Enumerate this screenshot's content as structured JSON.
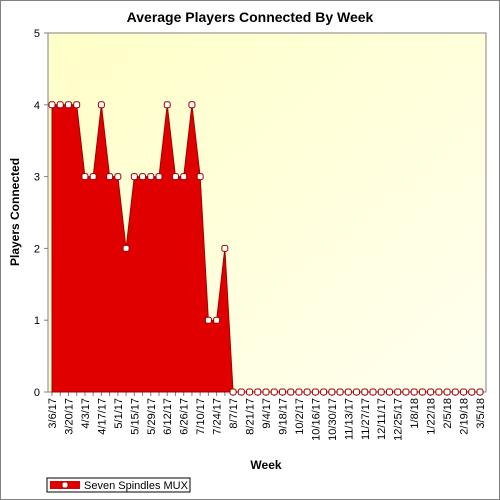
{
  "chart_data": {
    "type": "area",
    "title": "Average Players Connected By Week",
    "x_label": "Week",
    "y_label": "Players Connected",
    "categories": [
      "3/6/17",
      null,
      "3/20/17",
      null,
      "4/3/17",
      null,
      "4/17/17",
      null,
      "5/1/17",
      null,
      "5/15/17",
      null,
      "5/29/17",
      null,
      "6/12/17",
      null,
      "6/26/17",
      null,
      "7/10/17",
      null,
      "7/24/17",
      null,
      "8/7/17",
      null,
      "8/21/17",
      null,
      "9/4/17",
      null,
      "9/18/17",
      null,
      "10/2/17",
      null,
      "10/16/17",
      null,
      "10/30/17",
      null,
      "11/13/17",
      null,
      "11/27/17",
      null,
      "12/11/17",
      null,
      "12/25/17",
      null,
      "1/8/18",
      null,
      "1/22/18",
      null,
      "2/5/18",
      null,
      "2/19/18",
      null,
      "3/5/18"
    ],
    "series": [
      {
        "name": "Seven Spindles MUX",
        "color": "#e00000",
        "values": [
          4,
          4,
          4,
          4,
          3,
          3,
          4,
          3,
          3,
          2,
          3,
          3,
          3,
          3,
          4,
          3,
          3,
          4,
          3,
          1,
          1,
          2,
          0,
          0,
          0,
          0,
          0,
          0,
          0,
          0,
          0,
          0,
          0,
          0,
          0,
          0,
          0,
          0,
          0,
          0,
          0,
          0,
          0,
          0,
          0,
          0,
          0,
          0,
          0,
          0,
          0,
          0,
          0
        ]
      }
    ],
    "ylim": [
      0,
      5
    ],
    "yticks": [
      0,
      1,
      2,
      3,
      4,
      5
    ],
    "legend": "bottom-left"
  }
}
